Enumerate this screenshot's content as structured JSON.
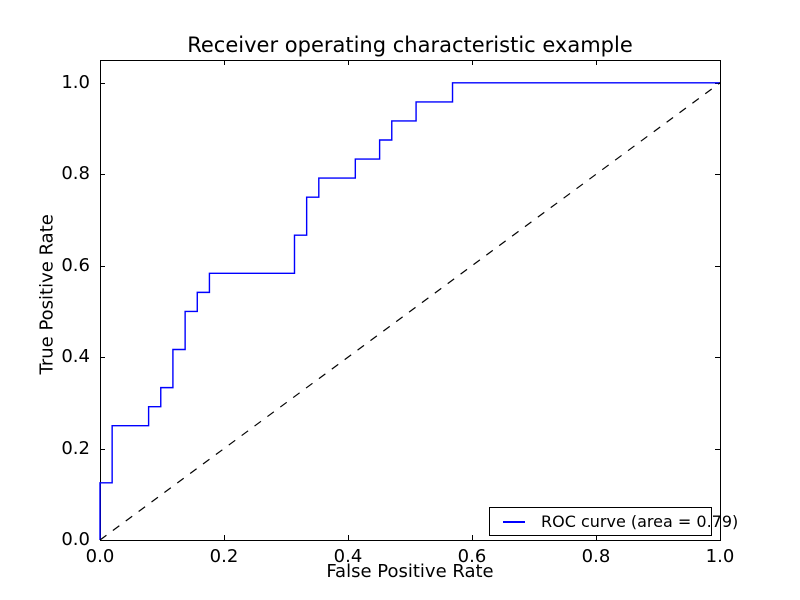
{
  "chart_data": {
    "type": "line",
    "title": "Receiver operating characteristic example",
    "xlabel": "False Positive Rate",
    "ylabel": "True Positive Rate",
    "xlim": [
      0.0,
      1.0
    ],
    "ylim": [
      0.0,
      1.05
    ],
    "grid": false,
    "x_ticks": [
      0.0,
      0.2,
      0.4,
      0.6,
      0.8,
      1.0
    ],
    "x_tick_labels": [
      "0.0",
      "0.2",
      "0.4",
      "0.6",
      "0.8",
      "1.0"
    ],
    "y_ticks": [
      0.0,
      0.2,
      0.4,
      0.6,
      0.8,
      1.0
    ],
    "y_tick_labels": [
      "0.0",
      "0.2",
      "0.4",
      "0.6",
      "0.8",
      "1.0"
    ],
    "legend_position": "lower right",
    "auc": 0.79,
    "series": [
      {
        "name": "ROC curve (area = 0.79)",
        "id": "roc-curve-line",
        "color": "#0000ff",
        "style": "solid",
        "width": 1.4,
        "in_legend": true,
        "points": [
          [
            0.0,
            0.0
          ],
          [
            0.0,
            0.125
          ],
          [
            0.0196,
            0.125
          ],
          [
            0.0196,
            0.25
          ],
          [
            0.0784,
            0.25
          ],
          [
            0.0784,
            0.2917
          ],
          [
            0.098,
            0.2917
          ],
          [
            0.098,
            0.3333
          ],
          [
            0.1176,
            0.3333
          ],
          [
            0.1176,
            0.4167
          ],
          [
            0.1373,
            0.4167
          ],
          [
            0.1373,
            0.5
          ],
          [
            0.1569,
            0.5
          ],
          [
            0.1569,
            0.5417
          ],
          [
            0.1765,
            0.5417
          ],
          [
            0.1765,
            0.5833
          ],
          [
            0.3137,
            0.5833
          ],
          [
            0.3137,
            0.6667
          ],
          [
            0.3333,
            0.6667
          ],
          [
            0.3333,
            0.75
          ],
          [
            0.3529,
            0.75
          ],
          [
            0.3529,
            0.7917
          ],
          [
            0.4118,
            0.7917
          ],
          [
            0.4118,
            0.8333
          ],
          [
            0.451,
            0.8333
          ],
          [
            0.451,
            0.875
          ],
          [
            0.4706,
            0.875
          ],
          [
            0.4706,
            0.9167
          ],
          [
            0.5098,
            0.9167
          ],
          [
            0.5098,
            0.9583
          ],
          [
            0.5686,
            0.9583
          ],
          [
            0.5686,
            1.0
          ],
          [
            1.0,
            1.0
          ]
        ]
      },
      {
        "name": "chance diagonal",
        "id": "diagonal-reference-line",
        "color": "#000000",
        "style": "dashed",
        "width": 1.2,
        "in_legend": false,
        "points": [
          [
            0.0,
            0.0
          ],
          [
            1.0,
            1.0
          ]
        ]
      }
    ]
  },
  "legend": {
    "entries": [
      {
        "label": "ROC curve (area = 0.79)",
        "color": "#0000ff"
      }
    ]
  }
}
